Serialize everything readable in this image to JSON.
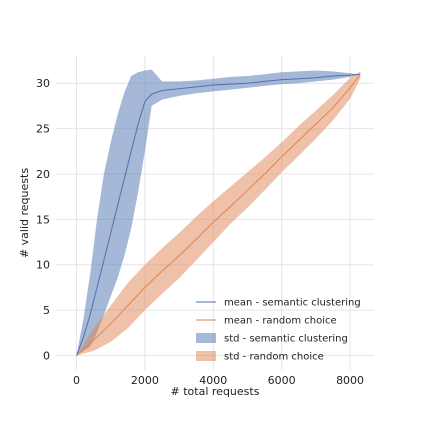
{
  "chart_data": {
    "type": "line",
    "title": "",
    "xlabel": "# total requests",
    "ylabel": "# valid requests",
    "xlim": [
      -600,
      8700
    ],
    "ylim": [
      -1.6,
      33
    ],
    "xticks": [
      0,
      2000,
      4000,
      6000,
      8000
    ],
    "yticks": [
      0,
      5,
      10,
      15,
      20,
      25,
      30
    ],
    "grid": true,
    "legend_position": "lower-right",
    "series": [
      {
        "name": "mean - semantic clustering",
        "kind": "mean",
        "color": "#4c72b0",
        "x": [
          0,
          200,
          400,
          600,
          800,
          1000,
          1200,
          1400,
          1600,
          1800,
          2000,
          2200,
          2500,
          3000,
          3500,
          4000,
          4500,
          5000,
          5500,
          6000,
          6500,
          7000,
          7500,
          8000,
          8300
        ],
        "y": [
          0,
          2,
          4.5,
          7.5,
          10.5,
          13.5,
          16.5,
          19.5,
          22.5,
          25.5,
          28,
          28.8,
          29.2,
          29.4,
          29.6,
          29.8,
          29.9,
          30.0,
          30.2,
          30.4,
          30.5,
          30.6,
          30.8,
          30.9,
          31
        ]
      },
      {
        "name": "mean - random choice",
        "kind": "mean",
        "color": "#dd8452",
        "x": [
          0,
          500,
          1000,
          1500,
          2000,
          2500,
          3000,
          3500,
          4000,
          4500,
          5000,
          5500,
          6000,
          6500,
          7000,
          7500,
          8000,
          8300
        ],
        "y": [
          0,
          1.7,
          3.5,
          5.5,
          7.5,
          9.3,
          11.0,
          12.8,
          14.7,
          16.4,
          18.2,
          20.0,
          21.9,
          23.7,
          25.5,
          27.3,
          29.5,
          31
        ]
      },
      {
        "name": "std - semantic clustering",
        "kind": "band",
        "color": "#4c72b0",
        "x": [
          0,
          200,
          400,
          600,
          800,
          1000,
          1200,
          1400,
          1600,
          1800,
          2000,
          2200,
          2500,
          3000,
          3500,
          4000,
          4500,
          5000,
          5500,
          6000,
          6500,
          7000,
          7500,
          8000,
          8300
        ],
        "lower": [
          0,
          0.5,
          1,
          2.5,
          4.5,
          6.5,
          8.5,
          11,
          14,
          18,
          22.5,
          27.5,
          28.2,
          28.6,
          28.9,
          29.1,
          29.3,
          29.5,
          29.7,
          29.9,
          30.0,
          30.2,
          30.4,
          30.7,
          31
        ],
        "upper": [
          0,
          4,
          9,
          15,
          20,
          23.5,
          26.5,
          29,
          30.8,
          31.2,
          31.4,
          31.5,
          30.2,
          30.2,
          30.3,
          30.5,
          30.7,
          30.8,
          31.0,
          31.2,
          31.3,
          31.4,
          31.3,
          31.1,
          31
        ]
      },
      {
        "name": "std - random choice",
        "kind": "band",
        "color": "#dd8452",
        "x": [
          0,
          500,
          1000,
          1500,
          2000,
          2500,
          3000,
          3500,
          4000,
          4500,
          5000,
          5500,
          6000,
          6500,
          7000,
          7500,
          8000,
          8300
        ],
        "lower": [
          0,
          0.5,
          1.5,
          3.0,
          5.0,
          6.8,
          8.5,
          10.5,
          12.5,
          14.5,
          16.3,
          18.2,
          20.2,
          22.0,
          23.9,
          25.9,
          28.3,
          30.5
        ],
        "upper": [
          0,
          3.0,
          5.5,
          8.0,
          10.0,
          11.8,
          13.5,
          15.3,
          17.0,
          18.6,
          20.2,
          21.8,
          23.5,
          25.3,
          27.0,
          28.7,
          30.6,
          31.3
        ]
      }
    ]
  }
}
